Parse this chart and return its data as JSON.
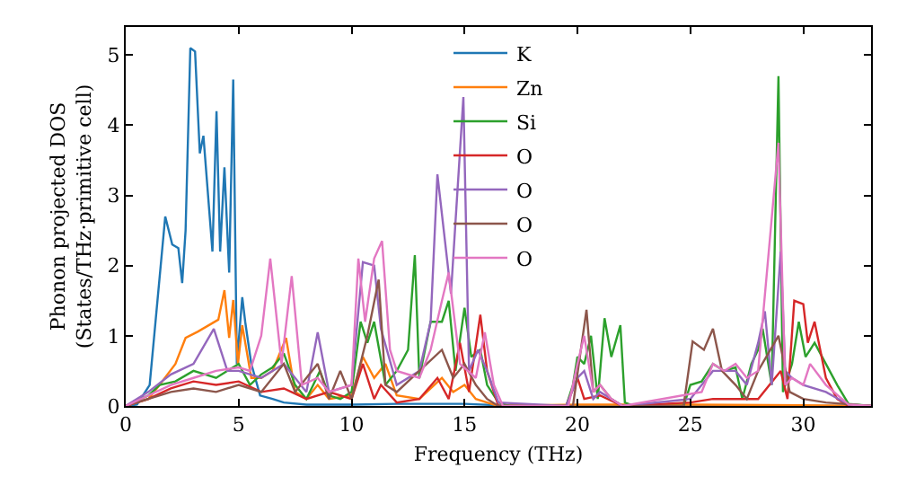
{
  "chart_data": {
    "type": "line",
    "xlabel": "Frequency (THz)",
    "ylabel": "Phonon projected DOS\n(States/THz·primitive cell)",
    "xlim": [
      0,
      33
    ],
    "ylim": [
      0,
      5.4
    ],
    "xticks": [
      0,
      5,
      10,
      15,
      20,
      25,
      30
    ],
    "yticks": [
      0,
      1,
      2,
      3,
      4,
      5
    ],
    "grid": false,
    "legend": "top",
    "marker": "none",
    "line_style": "solid",
    "series": [
      {
        "name": "K",
        "color": "#1f77b4",
        "x": [
          0,
          0.5,
          1.06,
          1.75,
          2.06,
          2.33,
          2.5,
          2.65,
          2.86,
          3.07,
          3.28,
          3.44,
          3.84,
          4.02,
          4.18,
          4.37,
          4.58,
          4.76,
          4.92,
          5.16,
          5.29,
          5.56,
          5.95,
          6.5,
          7,
          8,
          10,
          12,
          15,
          16.5,
          20,
          33
        ],
        "values": [
          0,
          0.02,
          0.3,
          2.7,
          2.3,
          2.25,
          1.75,
          2.5,
          5.1,
          5.05,
          3.6,
          3.85,
          2.2,
          4.2,
          2.2,
          3.4,
          1.9,
          4.65,
          0.6,
          1.55,
          1.2,
          0.6,
          0.15,
          0.1,
          0.05,
          0.02,
          0.02,
          0.03,
          0.03,
          0.01,
          0,
          0
        ]
      },
      {
        "name": "Zn",
        "color": "#ff7f0e",
        "x": [
          0,
          1,
          1.5,
          2.2,
          2.65,
          3.2,
          4.1,
          4.37,
          4.58,
          4.76,
          4.97,
          5.16,
          5.56,
          6,
          6.5,
          7.1,
          7.5,
          8,
          8.5,
          9,
          10,
          10.5,
          11,
          11.5,
          12,
          13,
          14,
          14.5,
          15,
          15.5,
          16,
          16.5,
          20,
          25,
          30,
          33
        ],
        "values": [
          0,
          0.1,
          0.3,
          0.6,
          0.97,
          1.06,
          1.23,
          1.65,
          0.97,
          1.51,
          0.6,
          1.15,
          0.4,
          0.4,
          0.5,
          0.97,
          0.2,
          0.1,
          0.3,
          0.1,
          0.15,
          0.7,
          0.4,
          0.6,
          0.15,
          0.1,
          0.4,
          0.2,
          0.3,
          0.1,
          0.05,
          0,
          0.02,
          0.02,
          0.01,
          0
        ]
      },
      {
        "name": "Si",
        "color": "#2ca02c",
        "x": [
          0,
          1,
          1.5,
          2.2,
          3,
          4,
          5,
          5.5,
          6,
          6.5,
          7,
          7.5,
          8,
          8.6,
          9,
          9.5,
          10,
          10.4,
          10.7,
          11,
          11.5,
          12,
          12.5,
          12.8,
          13,
          13.5,
          14,
          14.3,
          14.6,
          15,
          15.3,
          15.7,
          16,
          16.5,
          17,
          19.5,
          19.8,
          20,
          20.3,
          20.6,
          20.9,
          21.2,
          21.5,
          21.9,
          22.1,
          22.5,
          24.7,
          25,
          25.5,
          26,
          26.5,
          27,
          27.3,
          27.7,
          28,
          28.2,
          28.6,
          28.9,
          29.1,
          29.5,
          29.8,
          30.1,
          30.5,
          31,
          31.5,
          32,
          33
        ],
        "values": [
          0,
          0.15,
          0.3,
          0.35,
          0.5,
          0.4,
          0.6,
          0.3,
          0.45,
          0.55,
          0.75,
          0.3,
          0.1,
          0.5,
          0.15,
          0.1,
          0.2,
          1.2,
          0.9,
          1.2,
          0.3,
          0.5,
          0.8,
          2.15,
          0.4,
          1.2,
          1.2,
          1.5,
          0.5,
          1.4,
          0.7,
          0.8,
          0.3,
          0.05,
          0,
          0,
          0.3,
          0.7,
          0.6,
          1.0,
          0.1,
          1.25,
          0.7,
          1.15,
          0.05,
          0,
          0,
          0.3,
          0.35,
          0.6,
          0.5,
          0.55,
          0.1,
          0.6,
          0.8,
          1.1,
          0.3,
          4.7,
          0.2,
          0.6,
          1.2,
          0.7,
          0.9,
          0.6,
          0.3,
          0.03,
          0
        ]
      },
      {
        "name": "O",
        "color": "#d62728",
        "x": [
          0,
          1,
          2,
          3,
          4,
          5,
          6,
          7,
          8,
          9,
          10,
          10.5,
          11,
          11.3,
          12,
          13,
          13.8,
          14.3,
          14.8,
          15.2,
          15.7,
          16,
          16.5,
          19.5,
          20,
          20.3,
          21,
          22,
          25,
          26,
          27,
          28,
          29,
          29.3,
          29.6,
          30,
          30.2,
          30.5,
          31,
          31.5,
          32,
          33
        ],
        "values": [
          0,
          0.1,
          0.25,
          0.35,
          0.3,
          0.35,
          0.2,
          0.25,
          0.1,
          0.2,
          0.1,
          0.6,
          0.1,
          0.3,
          0.05,
          0.1,
          0.4,
          0.1,
          0.9,
          0.2,
          1.3,
          0.5,
          0,
          0,
          0.4,
          0.1,
          0.15,
          0,
          0.05,
          0.1,
          0.1,
          0.1,
          0.5,
          0.1,
          1.5,
          1.45,
          0.9,
          1.2,
          0.4,
          0.1,
          0,
          0
        ]
      },
      {
        "name": "O",
        "color": "#9467bd",
        "x": [
          0,
          1,
          2,
          3,
          3.9,
          4.5,
          5,
          6,
          7,
          8,
          8.5,
          9,
          10,
          10.5,
          11,
          11.3,
          12,
          13,
          13.5,
          13.8,
          14.4,
          14.95,
          15.2,
          15.6,
          16,
          16.5,
          19.5,
          20,
          20.3,
          20.7,
          21,
          22,
          25,
          26,
          27,
          27.5,
          28,
          28.3,
          28.6,
          29,
          29.2,
          29.5,
          30,
          31,
          32,
          33
        ],
        "values": [
          0,
          0.2,
          0.45,
          0.6,
          1.1,
          0.5,
          0.5,
          0.4,
          0.6,
          0.2,
          1.05,
          0.2,
          0.3,
          2.05,
          2.0,
          1.1,
          0.3,
          0.5,
          1.2,
          3.3,
          1.6,
          4.4,
          0.5,
          0.8,
          0.5,
          0.05,
          0,
          0.4,
          0.5,
          0.1,
          0.2,
          0,
          0.1,
          0.5,
          0.5,
          0.3,
          0.9,
          1.35,
          0.3,
          2.2,
          0.5,
          0.4,
          0.3,
          0.2,
          0.02,
          0
        ]
      },
      {
        "name": "O",
        "color": "#8c564b",
        "x": [
          0,
          1,
          2,
          3,
          4,
          5,
          6,
          7,
          7.5,
          8.5,
          9,
          9.5,
          10,
          10.7,
          11.2,
          11.5,
          12,
          13,
          14,
          14.5,
          15,
          15.5,
          16,
          16.5,
          19.8,
          20.4,
          20.7,
          21,
          21.5,
          22,
          24.7,
          25.1,
          25.6,
          26,
          26.4,
          27,
          27.5,
          28,
          28.9,
          29.4,
          30,
          31,
          33
        ],
        "values": [
          0,
          0.1,
          0.2,
          0.25,
          0.2,
          0.3,
          0.2,
          0.6,
          0.2,
          0.6,
          0.1,
          0.5,
          0.1,
          1.0,
          1.8,
          0.3,
          0.2,
          0.5,
          0.8,
          0.4,
          0.6,
          0.3,
          0.1,
          0,
          0,
          1.37,
          0.2,
          0.3,
          0.1,
          0,
          0,
          0.92,
          0.8,
          1.1,
          0.5,
          0.3,
          0.1,
          0.5,
          1.0,
          0.2,
          0.1,
          0.05,
          0
        ]
      },
      {
        "name": "O",
        "color": "#e377c2",
        "x": [
          0,
          1,
          2,
          3,
          4,
          5,
          5.5,
          6,
          6.4,
          6.9,
          7.35,
          7.8,
          8.5,
          9,
          10,
          10.3,
          10.6,
          11,
          11.35,
          11.7,
          12,
          13,
          13.5,
          14,
          14.3,
          14.8,
          15.5,
          15.9,
          16.3,
          16.7,
          19.6,
          20,
          20.3,
          20.7,
          21,
          21.5,
          22,
          25.5,
          26,
          26.5,
          27,
          27.5,
          28,
          28.9,
          29.2,
          29.5,
          30,
          30.3,
          31,
          32,
          33
        ],
        "values": [
          0,
          0.15,
          0.3,
          0.4,
          0.5,
          0.55,
          0.5,
          1.0,
          2.1,
          0.6,
          1.85,
          0.3,
          0.4,
          0.2,
          0.3,
          2.1,
          1.2,
          2.1,
          2.35,
          0.8,
          0.5,
          0.4,
          0.8,
          1.5,
          1.9,
          0.6,
          0.4,
          1.05,
          0.3,
          0,
          0,
          0.6,
          1.0,
          0.2,
          0.3,
          0.1,
          0,
          0.2,
          0.6,
          0.5,
          0.6,
          0.4,
          0.5,
          3.75,
          0.3,
          0.4,
          0.3,
          0.6,
          0.3,
          0.02,
          0
        ]
      }
    ]
  }
}
